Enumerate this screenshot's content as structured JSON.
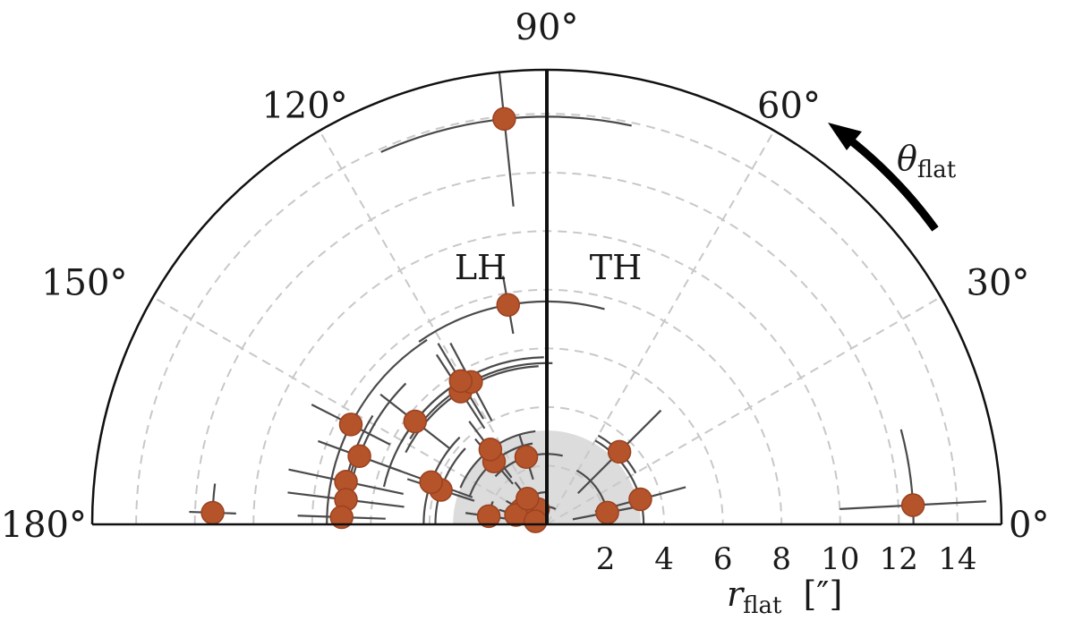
{
  "chart_data": {
    "type": "scatter",
    "projection": "polar (half plane, 0° to 180°)",
    "angle_ticks": [
      {
        "deg": 0,
        "label": "0°"
      },
      {
        "deg": 30,
        "label": "30°"
      },
      {
        "deg": 60,
        "label": "60°"
      },
      {
        "deg": 90,
        "label": "90°"
      },
      {
        "deg": 120,
        "label": "120°"
      },
      {
        "deg": 150,
        "label": "150°"
      },
      {
        "deg": 180,
        "label": "180°"
      }
    ],
    "r_ticks": [
      2,
      4,
      6,
      8,
      10,
      12,
      14
    ],
    "r_tick_labels": [
      "2",
      "4",
      "6",
      "8",
      "10",
      "12",
      "14"
    ],
    "rlim": [
      0,
      15.5
    ],
    "radial_axis_label": "r",
    "radial_axis_label_sub": "flat",
    "radial_axis_unit": "[″]",
    "angular_axis_label": "θ",
    "angular_axis_label_sub": "flat",
    "region_labels": {
      "left": "LH",
      "right": "TH"
    },
    "shaded_region_r": 3.2,
    "grid": true,
    "points": [
      {
        "r": 12.5,
        "theta": 3,
        "dr": 2.5,
        "dtheta": 12
      },
      {
        "r": 3.3,
        "theta": 15,
        "dr": 1.6,
        "dtheta": 45
      },
      {
        "r": 2.1,
        "theta": 11,
        "dr": 1.2,
        "dtheta": 50
      },
      {
        "r": 3.5,
        "theta": 45,
        "dr": 2.0,
        "dtheta": 15
      },
      {
        "r": 0.6,
        "theta": 120,
        "dr": 0.4,
        "dtheta": 60
      },
      {
        "r": 1.0,
        "theta": 150,
        "dr": 0.6,
        "dtheta": 40
      },
      {
        "r": 1.1,
        "theta": 163,
        "dr": 0.6,
        "dtheta": 30
      },
      {
        "r": 0.4,
        "theta": 165,
        "dr": 0.5,
        "dtheta": 40
      },
      {
        "r": 1.1,
        "theta": 127,
        "dr": 0.7,
        "dtheta": 35
      },
      {
        "r": 2.0,
        "theta": 172,
        "dr": 0.8,
        "dtheta": 15
      },
      {
        "r": 2.4,
        "theta": 107,
        "dr": 0.8,
        "dtheta": 30
      },
      {
        "r": 2.8,
        "theta": 130,
        "dr": 1.0,
        "dtheta": 30
      },
      {
        "r": 3.2,
        "theta": 127,
        "dr": 1.2,
        "dtheta": 30
      },
      {
        "r": 3.8,
        "theta": 162,
        "dr": 1.2,
        "dtheta": 25
      },
      {
        "r": 4.2,
        "theta": 160,
        "dr": 1.5,
        "dtheta": 25
      },
      {
        "r": 5.4,
        "theta": 123,
        "dr": 1.5,
        "dtheta": 30
      },
      {
        "r": 5.5,
        "theta": 118,
        "dr": 1.5,
        "dtheta": 30
      },
      {
        "r": 5.7,
        "theta": 121,
        "dr": 1.5,
        "dtheta": 30
      },
      {
        "r": 5.7,
        "theta": 142,
        "dr": 1.5,
        "dtheta": 25
      },
      {
        "r": 6.8,
        "theta": 160,
        "dr": 1.5,
        "dtheta": 25
      },
      {
        "r": 7.0,
        "theta": 168,
        "dr": 2.0,
        "dtheta": 20
      },
      {
        "r": 6.9,
        "theta": 173,
        "dr": 2.0,
        "dtheta": 15
      },
      {
        "r": 7.0,
        "theta": 178,
        "dr": 1.5,
        "dtheta": 15
      },
      {
        "r": 7.5,
        "theta": 153,
        "dr": 1.5,
        "dtheta": 30
      },
      {
        "r": 7.6,
        "theta": 100,
        "dr": 1.0,
        "dtheta": 25
      },
      {
        "r": 11.4,
        "theta": 178,
        "dr": 0.8,
        "dtheta": 5
      },
      {
        "r": 13.9,
        "theta": 96,
        "dr": 3.0,
        "dtheta": 18
      }
    ]
  }
}
